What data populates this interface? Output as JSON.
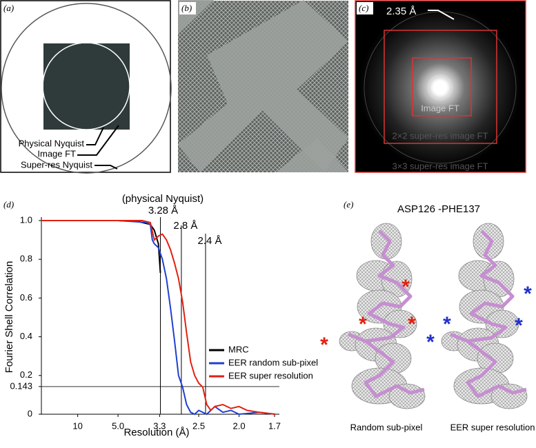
{
  "panel_a": {
    "label": "(a)",
    "labels": [
      "Physical Nyquist",
      "Image FT",
      "Super-res Nyquist"
    ]
  },
  "panel_b": {
    "label": "(b)"
  },
  "panel_c": {
    "label": "(c)",
    "resolution": "2.35 Å",
    "labels": [
      "Image FT",
      "2×2 super-res image FT",
      "3×3 super-res image FT"
    ]
  },
  "chart_data": {
    "type": "line",
    "panel_label": "(d)",
    "x_label": "Resolution (Å)",
    "y_label": "Fourier Shell Correlation",
    "annotation": "(physical Nyquist)",
    "xlim": [
      0.01,
      0.6
    ],
    "ylim": [
      0,
      1
    ],
    "xticks": [
      {
        "value": 0.1,
        "label": "10"
      },
      {
        "value": 0.2,
        "label": "5.0"
      },
      {
        "value": 0.303,
        "label": "3.3"
      },
      {
        "value": 0.4,
        "label": "2.5"
      },
      {
        "value": 0.5,
        "label": "2.0"
      },
      {
        "value": 0.588,
        "label": "1.7"
      }
    ],
    "yticks": [
      0,
      0.143,
      0.2,
      0.4,
      0.6,
      0.8,
      {
        "value": 1,
        "label": "1.0"
      }
    ],
    "hline": 0.143,
    "vlines": [
      {
        "value": 0.305,
        "label": "3.28 Å"
      },
      {
        "value": 0.357,
        "label": "2.8 Å"
      },
      {
        "value": 0.417,
        "label": "2.4 Å"
      }
    ],
    "legend": "lower right",
    "series": [
      {
        "name": "MRC",
        "color": "#000000",
        "x": [
          0.01,
          0.2,
          0.25,
          0.28,
          0.29,
          0.3,
          0.305
        ],
        "values": [
          1,
          1,
          0.995,
          0.98,
          0.95,
          0.88,
          0.73
        ]
      },
      {
        "name": "EER random sub-pixel",
        "color": "#1f3fd0",
        "x": [
          0.01,
          0.2,
          0.27,
          0.28,
          0.285,
          0.29,
          0.3,
          0.31,
          0.32,
          0.33,
          0.34,
          0.35,
          0.36,
          0.37,
          0.38,
          0.39,
          0.4,
          0.42,
          0.44,
          0.46,
          0.48,
          0.5,
          0.55,
          0.59
        ],
        "values": [
          1,
          1,
          0.99,
          0.98,
          0.9,
          0.88,
          0.86,
          0.8,
          0.7,
          0.55,
          0.38,
          0.2,
          0.14,
          0.05,
          0.01,
          0,
          0.02,
          0,
          0.04,
          0.01,
          0.02,
          0,
          0.01,
          0
        ]
      },
      {
        "name": "EER super resolution",
        "color": "#e02010",
        "x": [
          0.01,
          0.2,
          0.26,
          0.28,
          0.29,
          0.3,
          0.31,
          0.32,
          0.33,
          0.34,
          0.35,
          0.36,
          0.37,
          0.38,
          0.39,
          0.4,
          0.41,
          0.42,
          0.43,
          0.44,
          0.46,
          0.48,
          0.5,
          0.52,
          0.55,
          0.59
        ],
        "values": [
          1,
          1,
          1,
          0.99,
          0.9,
          0.92,
          0.93,
          0.9,
          0.85,
          0.78,
          0.7,
          0.58,
          0.42,
          0.27,
          0.2,
          0.16,
          0.14,
          0.05,
          0.02,
          0.04,
          0.05,
          0.03,
          0.04,
          0.02,
          0.01,
          0
        ]
      }
    ]
  },
  "panel_e": {
    "label": "(e)",
    "title": "ASP126 -PHE137",
    "captions": [
      "Random sub-pixel",
      "EER super resolution"
    ],
    "marker": "*"
  }
}
